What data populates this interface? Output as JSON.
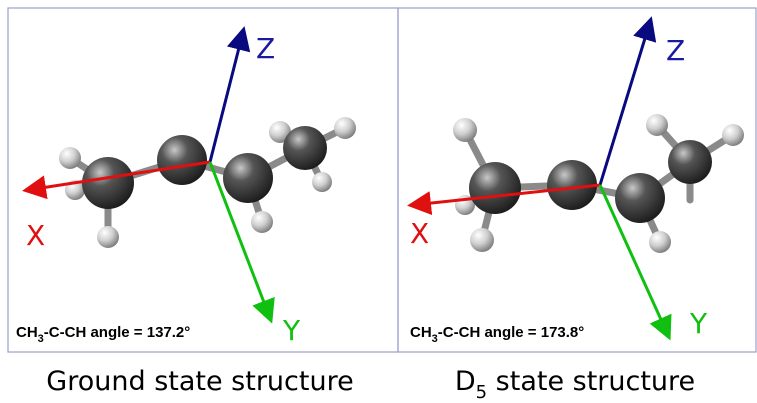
{
  "panels": [
    {
      "axes": {
        "x": "X",
        "y": "Y",
        "z": "Z"
      },
      "angle_label": {
        "prefix": "CH",
        "subscript": "3",
        "suffix": "-C-CH angle = 137.2°"
      },
      "caption": {
        "prefix": "Ground state structure"
      }
    },
    {
      "axes": {
        "x": "X",
        "y": "Y",
        "z": "Z"
      },
      "angle_label": {
        "prefix": "CH",
        "subscript": "3",
        "suffix": "-C-CH angle = 173.8°"
      },
      "caption": {
        "prefix": "D",
        "subscript": "5",
        "suffix": " state structure"
      }
    }
  ]
}
